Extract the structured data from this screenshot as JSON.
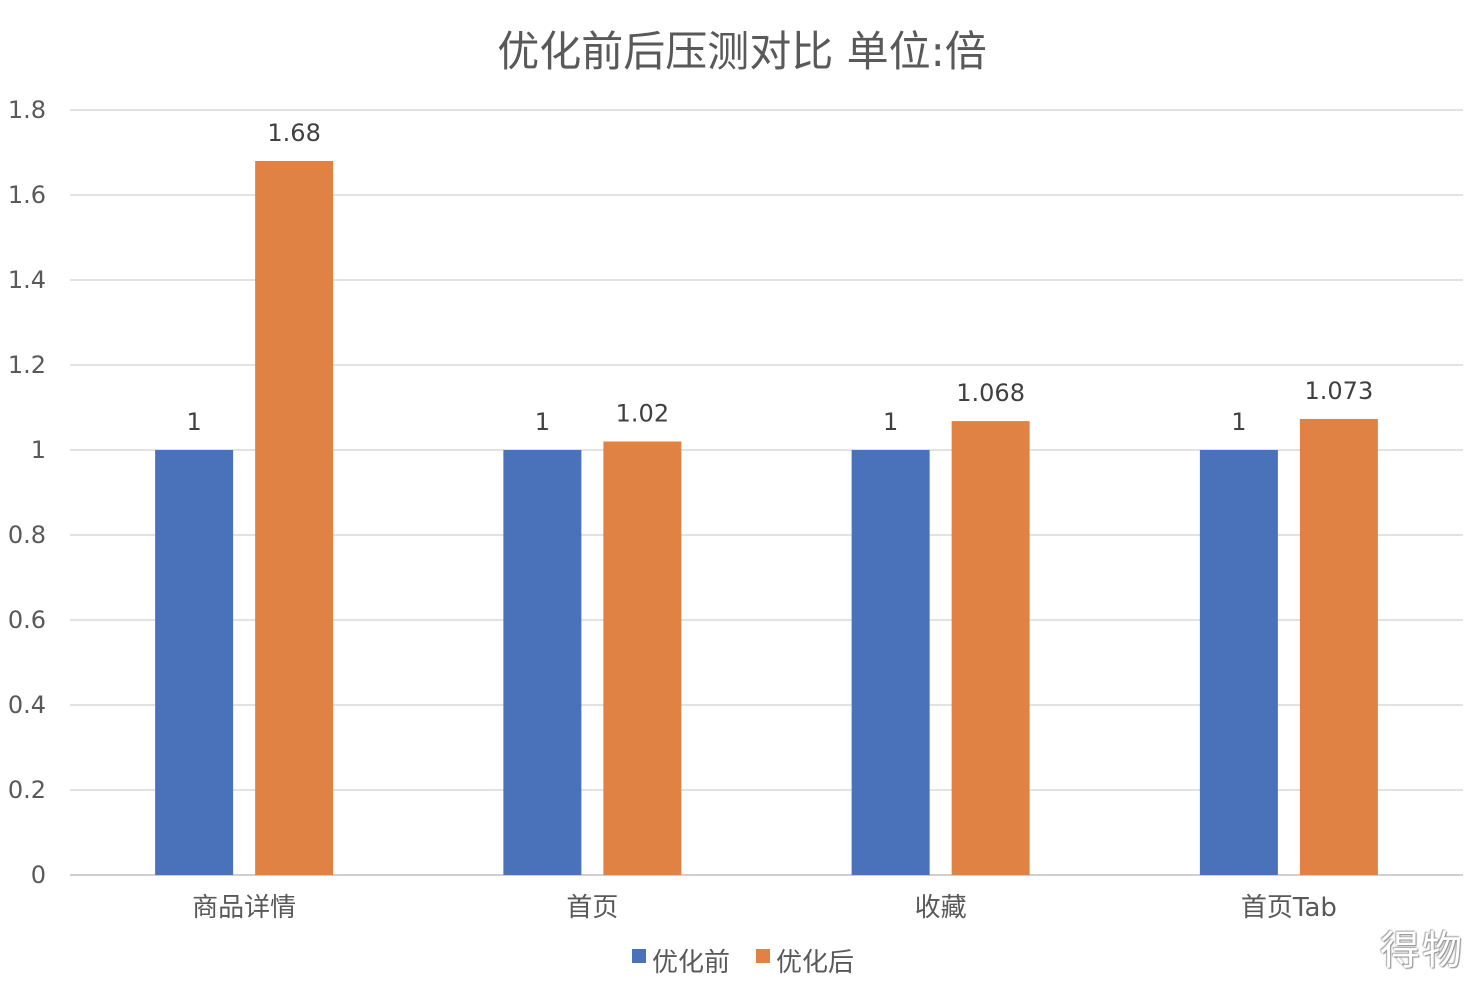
{
  "chart_data": {
    "type": "bar",
    "title": "优化前后压测对比  单位:倍",
    "categories": [
      "商品详情",
      "首页",
      "收藏",
      "首页Tab"
    ],
    "series": [
      {
        "name": "优化前",
        "values": [
          1,
          1,
          1,
          1
        ],
        "labels": [
          "1",
          "1",
          "1",
          "1"
        ],
        "color": "#4a72bb"
      },
      {
        "name": "优化后",
        "values": [
          1.68,
          1.02,
          1.068,
          1.073
        ],
        "labels": [
          "1.68",
          "1.02",
          "1.068",
          "1.073"
        ],
        "color": "#df8243"
      }
    ],
    "ylim": [
      0,
      1.8
    ],
    "yticks": [
      "0",
      "0.2",
      "0.4",
      "0.6",
      "0.8",
      "1",
      "1.2",
      "1.4",
      "1.6",
      "1.8"
    ],
    "grid": true,
    "legend_position": "bottom",
    "xlabel": "",
    "ylabel": ""
  },
  "watermark": "得物"
}
